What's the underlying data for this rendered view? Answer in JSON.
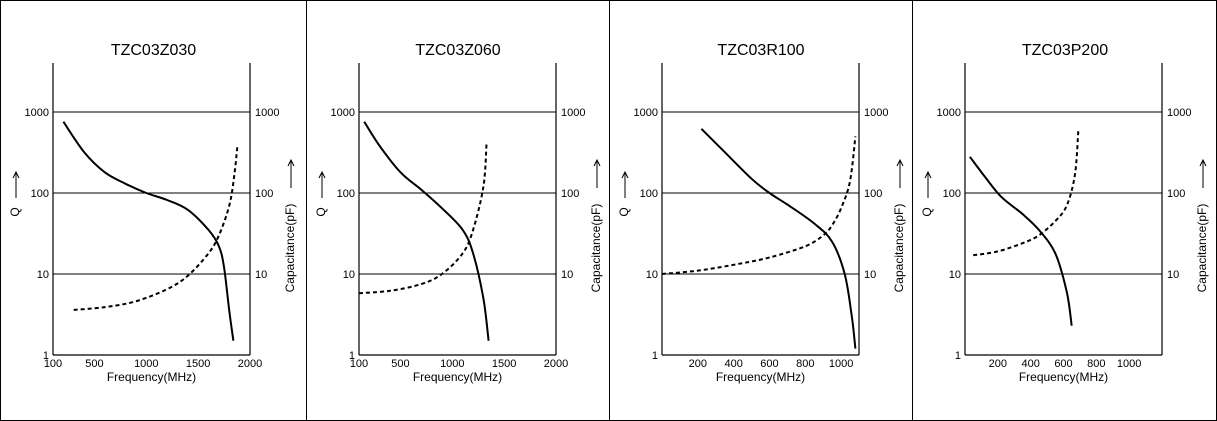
{
  "chart_data": [
    {
      "type": "line",
      "title": "TZC03Z030",
      "xlabel": "Frequency(MHz)",
      "ylabel_left": "Q",
      "ylabel_right": "Capacitance(pF)",
      "xlim": [
        100,
        2000
      ],
      "ylim": [
        1,
        1000
      ],
      "yscale": "log",
      "xticks": [
        100,
        500,
        1000,
        1500,
        2000
      ],
      "xtick_labels": [
        "100",
        "500",
        "1000",
        "1500",
        "2000"
      ],
      "yticks_left": [
        "1",
        "10",
        "100",
        "1000"
      ],
      "yticks_right": [
        "10",
        "100",
        "1000"
      ],
      "grid": "horizontal",
      "series": [
        {
          "style": "solid",
          "x": [
            200,
            400,
            600,
            800,
            1000,
            1200,
            1400,
            1600,
            1700,
            1750,
            1800,
            1840
          ],
          "y": [
            760,
            320,
            180,
            130,
            100,
            82,
            62,
            35,
            22,
            12,
            3.5,
            1.5
          ]
        },
        {
          "style": "dashed",
          "x": [
            300,
            600,
            900,
            1200,
            1400,
            1600,
            1700,
            1800,
            1850,
            1880
          ],
          "y": [
            3.6,
            3.9,
            4.6,
            6.5,
            9.5,
            18,
            30,
            70,
            170,
            400
          ]
        }
      ]
    },
    {
      "type": "line",
      "title": "TZC03Z060",
      "xlabel": "Frequency(MHz)",
      "ylabel_left": "Q",
      "ylabel_right": "Capacitance(pF)",
      "xlim": [
        100,
        2000
      ],
      "ylim": [
        1,
        1000
      ],
      "yscale": "log",
      "xticks": [
        100,
        500,
        1000,
        1500,
        2000
      ],
      "xtick_labels": [
        "100",
        "500",
        "1000",
        "1500",
        "2000"
      ],
      "yticks_left": [
        "1",
        "10",
        "100",
        "1000"
      ],
      "yticks_right": [
        "10",
        "100",
        "1000"
      ],
      "grid": "horizontal",
      "series": [
        {
          "style": "solid",
          "x": [
            150,
            300,
            500,
            700,
            900,
            1100,
            1200,
            1300,
            1350
          ],
          "y": [
            760,
            380,
            180,
            110,
            65,
            35,
            18,
            5,
            1.5
          ]
        },
        {
          "style": "dashed",
          "x": [
            100,
            400,
            700,
            900,
            1100,
            1200,
            1300,
            1330
          ],
          "y": [
            5.8,
            6.2,
            7.5,
            10,
            18,
            35,
            120,
            400
          ]
        }
      ]
    },
    {
      "type": "line",
      "title": "TZC03R100",
      "xlabel": "Frequency(MHz)",
      "ylabel_left": "Q",
      "ylabel_right": "Capacitance(pF)",
      "xlim": [
        0,
        1100
      ],
      "ylim": [
        1,
        1000
      ],
      "yscale": "log",
      "xticks": [
        200,
        400,
        600,
        800,
        1000
      ],
      "xtick_labels": [
        "200",
        "400",
        "600",
        "800",
        "1000"
      ],
      "yticks_left": [
        "1",
        "10",
        "100",
        "1000"
      ],
      "yticks_right": [
        "10",
        "100",
        "1000"
      ],
      "grid": "horizontal",
      "series": [
        {
          "style": "solid",
          "x": [
            220,
            350,
            500,
            600,
            700,
            850,
            950,
            1020,
            1060,
            1080
          ],
          "y": [
            620,
            320,
            150,
            100,
            72,
            42,
            25,
            10,
            3,
            1.2
          ]
        },
        {
          "style": "dashed",
          "x": [
            0,
            200,
            400,
            600,
            800,
            900,
            950,
            1000,
            1050,
            1080
          ],
          "y": [
            10,
            11,
            13,
            16,
            22,
            30,
            40,
            65,
            140,
            500
          ]
        }
      ]
    },
    {
      "type": "line",
      "title": "TZC03P200",
      "xlabel": "Frequency(MHz)",
      "ylabel_left": "Q",
      "ylabel_right": "Capacitance(pF)",
      "xlim": [
        0,
        1200
      ],
      "ylim": [
        1,
        1000
      ],
      "yscale": "log",
      "xticks": [
        200,
        400,
        600,
        800,
        1000
      ],
      "xtick_labels": [
        "200",
        "400",
        "600",
        "800",
        "1000"
      ],
      "yticks_left": [
        "1",
        "10",
        "100",
        "1000"
      ],
      "yticks_right": [
        "10",
        "100",
        "1000"
      ],
      "grid": "horizontal",
      "series": [
        {
          "style": "solid",
          "x": [
            30,
            120,
            220,
            350,
            450,
            550,
            620,
            650
          ],
          "y": [
            280,
            160,
            90,
            55,
            35,
            18,
            6,
            2.3
          ]
        },
        {
          "style": "dashed",
          "x": [
            50,
            200,
            350,
            450,
            550,
            620,
            670,
            690
          ],
          "y": [
            17,
            19,
            24,
            30,
            45,
            70,
            170,
            580
          ]
        }
      ]
    }
  ]
}
